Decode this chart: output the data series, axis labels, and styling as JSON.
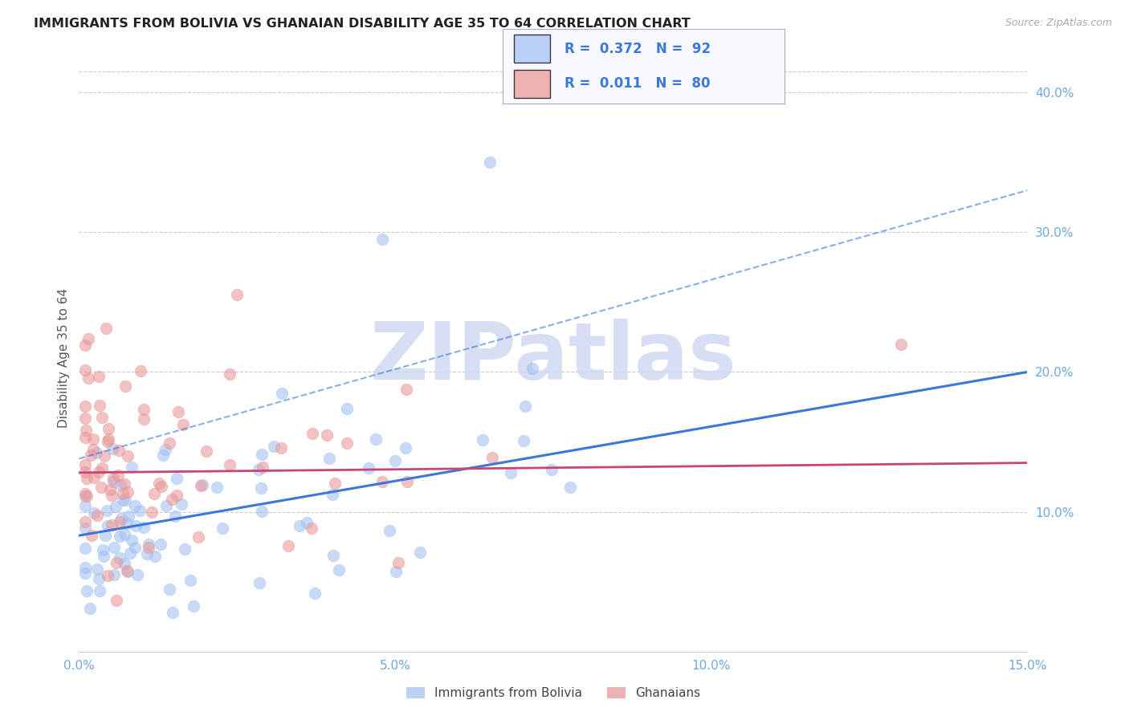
{
  "title": "IMMIGRANTS FROM BOLIVIA VS GHANAIAN DISABILITY AGE 35 TO 64 CORRELATION CHART",
  "source": "Source: ZipAtlas.com",
  "ylabel": "Disability Age 35 to 64",
  "xlim": [
    0.0,
    0.15
  ],
  "ylim": [
    0.0,
    0.42
  ],
  "xtick_vals": [
    0.0,
    0.05,
    0.1,
    0.15
  ],
  "xtick_labels": [
    "0.0%",
    "5.0%",
    "10.0%",
    "15.0%"
  ],
  "ytick_vals": [
    0.1,
    0.2,
    0.3,
    0.4
  ],
  "ytick_labels": [
    "10.0%",
    "20.0%",
    "30.0%",
    "40.0%"
  ],
  "legend1_R": "0.372",
  "legend1_N": "92",
  "legend2_R": "0.011",
  "legend2_N": "80",
  "blue_color": "#a4c2f4",
  "pink_color": "#ea9999",
  "blue_line_color": "#3c78d8",
  "pink_line_color": "#cc4477",
  "axis_tick_color": "#6fa8dc",
  "watermark": "ZIPatlas",
  "watermark_color": "#d0d8f0",
  "grid_color": "#cccccc",
  "background_color": "#ffffff",
  "legend_text_color": "#3c78d8",
  "legend_label_color": "#444444"
}
